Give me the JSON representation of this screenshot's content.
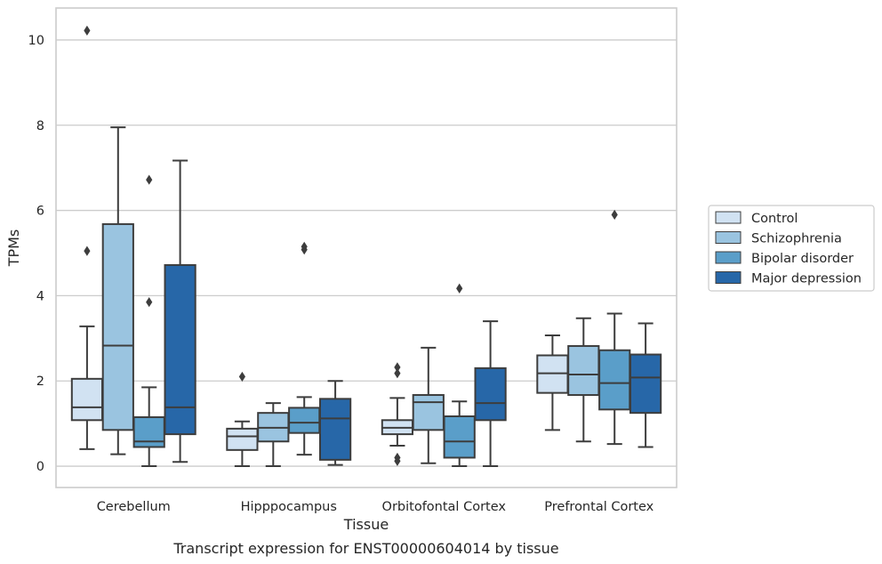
{
  "chart_data": {
    "type": "box",
    "xlabel": "Tissue",
    "ylabel": "TPMs",
    "caption": "Transcript expression for ENST00000604014 by tissue",
    "categories": [
      "Cerebellum",
      "Hipppocampus",
      "Orbitofontal Cortex",
      "Prefrontal Cortex"
    ],
    "ylim": [
      -0.5,
      10.75
    ],
    "yticks": [
      0,
      2,
      4,
      6,
      8,
      10
    ],
    "grid": "horizontal",
    "legend_position": "right",
    "series": [
      {
        "name": "Control",
        "color": "#d1e2f2",
        "boxes": [
          {
            "whisker_low": 0.4,
            "q1": 1.08,
            "median": 1.38,
            "q3": 2.05,
            "whisker_high": 3.28,
            "outliers": [
              10.22,
              5.05
            ]
          },
          {
            "whisker_low": 0.0,
            "q1": 0.38,
            "median": 0.7,
            "q3": 0.88,
            "whisker_high": 1.05,
            "outliers": [
              2.1
            ]
          },
          {
            "whisker_low": 0.48,
            "q1": 0.75,
            "median": 0.9,
            "q3": 1.08,
            "whisker_high": 1.6,
            "outliers": [
              2.32,
              2.18,
              0.2,
              0.12
            ]
          },
          {
            "whisker_low": 0.85,
            "q1": 1.72,
            "median": 2.18,
            "q3": 2.6,
            "whisker_high": 3.07,
            "outliers": []
          }
        ]
      },
      {
        "name": "Schizophrenia",
        "color": "#9ac4e0",
        "boxes": [
          {
            "whisker_low": 0.28,
            "q1": 0.85,
            "median": 2.83,
            "q3": 5.68,
            "whisker_high": 7.95,
            "outliers": []
          },
          {
            "whisker_low": 0.0,
            "q1": 0.58,
            "median": 0.9,
            "q3": 1.25,
            "whisker_high": 1.48,
            "outliers": []
          },
          {
            "whisker_low": 0.07,
            "q1": 0.85,
            "median": 1.5,
            "q3": 1.67,
            "whisker_high": 2.78,
            "outliers": []
          },
          {
            "whisker_low": 0.58,
            "q1": 1.67,
            "median": 2.15,
            "q3": 2.82,
            "whisker_high": 3.47,
            "outliers": []
          }
        ]
      },
      {
        "name": "Bipolar disorder",
        "color": "#5a9ec9",
        "boxes": [
          {
            "whisker_low": 0.0,
            "q1": 0.45,
            "median": 0.58,
            "q3": 1.15,
            "whisker_high": 1.85,
            "outliers": [
              6.72,
              3.85
            ]
          },
          {
            "whisker_low": 0.27,
            "q1": 0.78,
            "median": 1.02,
            "q3": 1.37,
            "whisker_high": 1.62,
            "outliers": [
              5.15,
              5.08
            ]
          },
          {
            "whisker_low": 0.0,
            "q1": 0.2,
            "median": 0.58,
            "q3": 1.17,
            "whisker_high": 1.52,
            "outliers": [
              4.17
            ]
          },
          {
            "whisker_low": 0.52,
            "q1": 1.33,
            "median": 1.95,
            "q3": 2.72,
            "whisker_high": 3.58,
            "outliers": [
              5.9
            ]
          }
        ]
      },
      {
        "name": "Major depression",
        "color": "#2767a8",
        "boxes": [
          {
            "whisker_low": 0.1,
            "q1": 0.75,
            "median": 1.38,
            "q3": 4.72,
            "whisker_high": 7.17,
            "outliers": []
          },
          {
            "whisker_low": 0.03,
            "q1": 0.15,
            "median": 1.12,
            "q3": 1.58,
            "whisker_high": 2.0,
            "outliers": []
          },
          {
            "whisker_low": 0.0,
            "q1": 1.08,
            "median": 1.48,
            "q3": 2.3,
            "whisker_high": 3.4,
            "outliers": []
          },
          {
            "whisker_low": 0.45,
            "q1": 1.25,
            "median": 2.08,
            "q3": 2.62,
            "whisker_high": 3.35,
            "outliers": []
          }
        ]
      }
    ]
  }
}
